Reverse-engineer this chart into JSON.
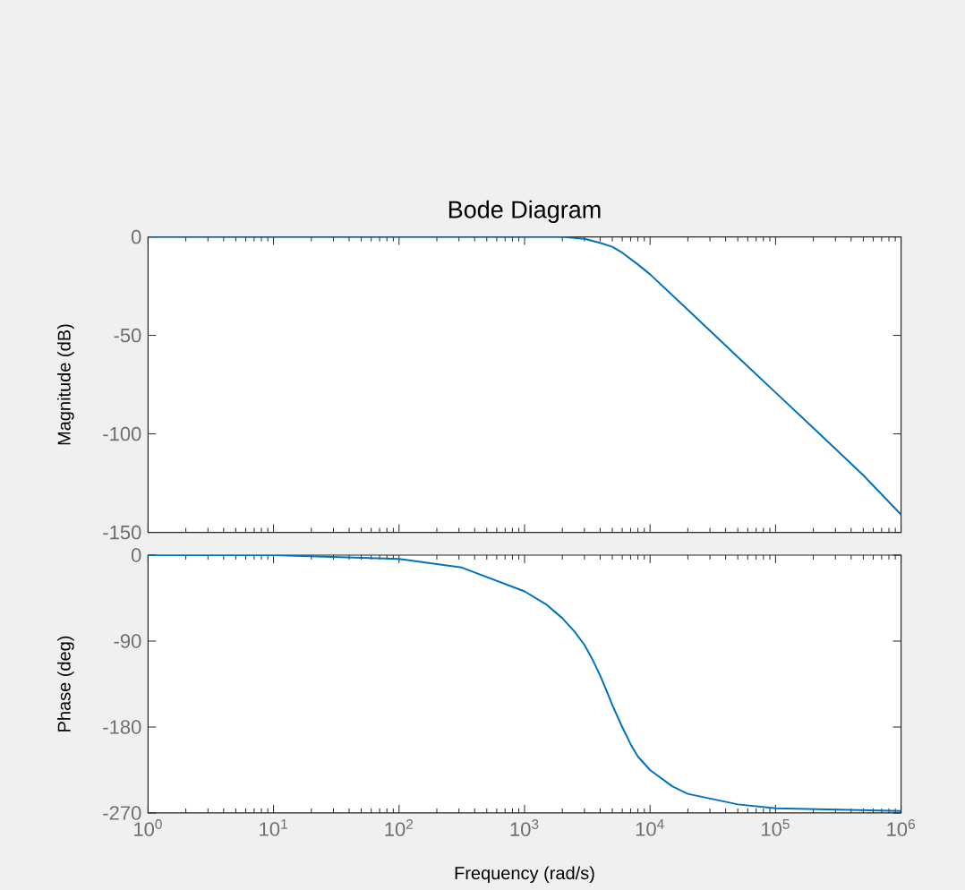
{
  "chart_data": [
    {
      "type": "line",
      "title": "Bode Diagram",
      "ylabel": "Magnitude (dB)",
      "log": "x",
      "tick_labels": "y",
      "x": [
        1,
        10,
        100,
        1000,
        2000,
        3000,
        4000,
        5000,
        6000,
        8000,
        10000,
        20000,
        50000,
        100000,
        200000,
        500000,
        1000000
      ],
      "series": [
        {
          "color": "#0072bd",
          "values": [
            0,
            0,
            0,
            0,
            0,
            -1,
            -3,
            -5,
            -8,
            -14,
            -19,
            -37,
            -61,
            -79,
            -97,
            -121,
            -141
          ]
        }
      ],
      "xlim": [
        1,
        1000000
      ],
      "ylim": [
        -150,
        0
      ],
      "xticks": [
        {
          "value": 1,
          "label": null
        },
        {
          "value": 10,
          "label": null
        },
        {
          "value": 100,
          "label": null
        },
        {
          "value": 1000,
          "label": null
        },
        {
          "value": 10000,
          "label": null
        },
        {
          "value": 100000,
          "label": null
        },
        {
          "value": 1000000,
          "label": null
        }
      ],
      "yticks": [
        -150,
        -100,
        -50,
        0
      ]
    },
    {
      "type": "line",
      "xlabel": "Frequency  (rad/s)",
      "ylabel": "Phase (deg)",
      "log": "x",
      "x": [
        1,
        10,
        100,
        316,
        1000,
        1500,
        2000,
        2500,
        3000,
        3500,
        4000,
        4500,
        5000,
        6000,
        7000,
        8000,
        10000,
        15000,
        20000,
        50000,
        100000,
        1000000
      ],
      "series": [
        {
          "color": "#0072bd",
          "values": [
            0,
            0,
            -4,
            -13,
            -38,
            -52,
            -66,
            -80,
            -94,
            -110,
            -126,
            -142,
            -157,
            -180,
            -198,
            -211,
            -225,
            -242,
            -250,
            -261,
            -265,
            -268
          ]
        }
      ],
      "xlim": [
        1,
        1000000
      ],
      "ylim": [
        -270,
        0
      ],
      "xticks": [
        {
          "value": 1,
          "label": "10$^{0}$"
        },
        {
          "value": 10,
          "label": "10$^{1}$"
        },
        {
          "value": 100,
          "label": "10$^{2}$"
        },
        {
          "value": 1000,
          "label": "10$^{3}$"
        },
        {
          "value": 10000,
          "label": "10$^{4}$"
        },
        {
          "value": 100000,
          "label": "10$^{5}$"
        },
        {
          "value": 1000000,
          "label": "10$^{6}$"
        }
      ],
      "yticks": [
        -270,
        -180,
        -90,
        0
      ]
    }
  ]
}
